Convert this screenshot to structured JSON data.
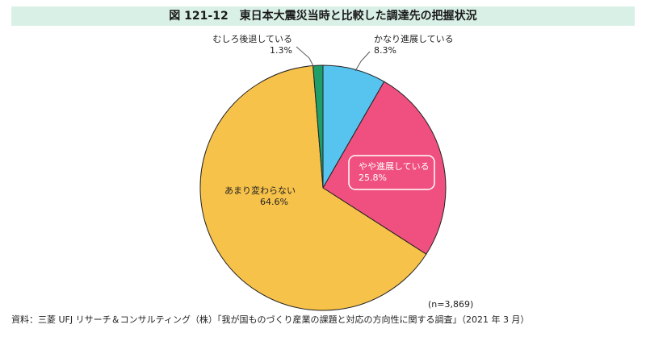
{
  "title": "図 121-12　東日本大震災当時と比較した調達先の把握状況",
  "note_n": "(n=3,869)",
  "source": "資料：三菱 UFJ リサーチ＆コンサルティング（株）「我が国ものづくり産業の課題と対応の方向性に関する調査」（2021 年 3 月）",
  "chart_data": {
    "type": "pie",
    "slices": [
      {
        "label": "かなり進展している",
        "value": 8.3,
        "display": "8.3%",
        "color": "#56c4ee"
      },
      {
        "label": "やや進展している",
        "value": 25.8,
        "display": "25.8%",
        "color": "#f0507f"
      },
      {
        "label": "あまり変わらない",
        "value": 64.6,
        "display": "64.6%",
        "color": "#f7c24a"
      },
      {
        "label": "むしろ後退している",
        "value": 1.3,
        "display": "1.3%",
        "color": "#1f9e69"
      }
    ]
  }
}
